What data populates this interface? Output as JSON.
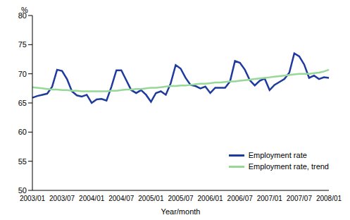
{
  "chart_data": {
    "type": "line",
    "y_label": "%",
    "x_label": "Year/month",
    "categories": [
      "2003/01",
      null,
      null,
      null,
      null,
      null,
      "2003/07",
      null,
      null,
      null,
      null,
      null,
      "2004/01",
      null,
      null,
      null,
      null,
      null,
      "2004/07",
      null,
      null,
      null,
      null,
      null,
      "2005/01",
      null,
      null,
      null,
      null,
      null,
      "2005/07",
      null,
      null,
      null,
      null,
      null,
      "2006/01",
      null,
      null,
      null,
      null,
      null,
      "2006/07",
      null,
      null,
      null,
      null,
      null,
      "2007/01",
      null,
      null,
      null,
      null,
      null,
      "2007/07",
      null,
      null,
      null,
      null,
      null,
      "2008/01"
    ],
    "series": [
      {
        "name": "Employment rate",
        "color": "#1f3a9e",
        "values": [
          65.9,
          66.2,
          66.4,
          66.6,
          67.8,
          70.7,
          70.5,
          69.1,
          67.0,
          66.3,
          66.1,
          66.4,
          65.0,
          65.6,
          65.7,
          65.4,
          67.8,
          70.6,
          70.6,
          68.9,
          67.2,
          66.7,
          67.2,
          66.4,
          65.2,
          66.7,
          67.0,
          66.4,
          68.4,
          71.5,
          70.9,
          69.3,
          68.1,
          67.9,
          67.5,
          67.8,
          66.7,
          67.6,
          67.6,
          67.6,
          68.7,
          72.2,
          71.9,
          70.7,
          68.9,
          68.0,
          68.8,
          69.2,
          67.2,
          68.1,
          68.6,
          69.1,
          70.2,
          73.5,
          73.0,
          71.6,
          69.3,
          69.7,
          69.1,
          69.4,
          69.3
        ]
      },
      {
        "name": "Employment rate, trend",
        "color": "#96d896",
        "values": [
          67.7,
          67.6,
          67.5,
          67.4,
          67.3,
          67.3,
          67.2,
          67.2,
          67.1,
          67.1,
          67.0,
          67.0,
          67.0,
          67.0,
          67.0,
          67.0,
          67.1,
          67.1,
          67.2,
          67.3,
          67.3,
          67.4,
          67.4,
          67.5,
          67.6,
          67.6,
          67.7,
          67.8,
          67.9,
          67.9,
          68.0,
          68.0,
          68.1,
          68.2,
          68.3,
          68.3,
          68.4,
          68.5,
          68.5,
          68.6,
          68.7,
          68.7,
          68.8,
          68.9,
          69.0,
          69.1,
          69.2,
          69.3,
          69.4,
          69.5,
          69.6,
          69.7,
          69.8,
          69.9,
          70.0,
          70.0,
          70.0,
          70.1,
          70.2,
          70.4,
          70.7
        ]
      }
    ],
    "ylim": [
      50,
      80
    ],
    "yticks": [
      50,
      55,
      60,
      65,
      70,
      75,
      80
    ],
    "grid": false,
    "legend": "lower right"
  }
}
